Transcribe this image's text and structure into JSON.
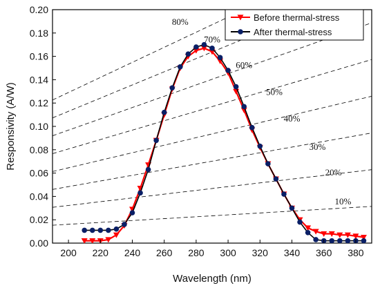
{
  "chart_data": {
    "type": "line",
    "xlabel": "Wavelength (nm)",
    "ylabel": "Responsivity (A/W)",
    "xlim": [
      190,
      390
    ],
    "ylim": [
      0,
      0.2
    ],
    "xticks": [
      "200",
      "220",
      "240",
      "260",
      "280",
      "300",
      "320",
      "340",
      "360",
      "380"
    ],
    "yticks": [
      "0.00",
      "0.02",
      "0.04",
      "0.06",
      "0.08",
      "0.10",
      "0.12",
      "0.14",
      "0.16",
      "0.18",
      "0.20"
    ],
    "legend_position": "top-right",
    "grid": false,
    "series": [
      {
        "name": "Before thermal-stress",
        "color": "#ff0000",
        "marker": "triangle-down",
        "x": [
          210,
          215,
          220,
          225,
          230,
          235,
          240,
          245,
          250,
          255,
          260,
          265,
          270,
          275,
          280,
          285,
          290,
          295,
          300,
          305,
          310,
          315,
          320,
          325,
          330,
          335,
          340,
          345,
          350,
          355,
          360,
          365,
          370,
          375,
          380,
          385
        ],
        "y": [
          0.002,
          0.002,
          0.002,
          0.003,
          0.007,
          0.015,
          0.029,
          0.047,
          0.067,
          0.088,
          0.11,
          0.132,
          0.15,
          0.16,
          0.165,
          0.167,
          0.164,
          0.156,
          0.146,
          0.13,
          0.114,
          0.097,
          0.082,
          0.068,
          0.055,
          0.042,
          0.03,
          0.02,
          0.013,
          0.01,
          0.008,
          0.008,
          0.007,
          0.007,
          0.006,
          0.005
        ]
      },
      {
        "name": "After thermal-stress",
        "color": "#0a1f66",
        "marker": "circle",
        "x": [
          210,
          215,
          220,
          225,
          230,
          235,
          240,
          245,
          250,
          255,
          260,
          265,
          270,
          275,
          280,
          285,
          290,
          295,
          300,
          305,
          310,
          315,
          320,
          325,
          330,
          335,
          340,
          345,
          350,
          355,
          360,
          365,
          370,
          375,
          380,
          385
        ],
        "y": [
          0.011,
          0.011,
          0.011,
          0.011,
          0.012,
          0.016,
          0.026,
          0.043,
          0.063,
          0.088,
          0.112,
          0.133,
          0.151,
          0.162,
          0.168,
          0.17,
          0.167,
          0.159,
          0.148,
          0.134,
          0.117,
          0.099,
          0.083,
          0.068,
          0.055,
          0.042,
          0.03,
          0.018,
          0.009,
          0.003,
          0.002,
          0.002,
          0.002,
          0.002,
          0.002,
          0.002
        ]
      }
    ],
    "efficiency_lines": [
      {
        "label": "10%",
        "pct": 10,
        "label_x": 372,
        "label_y": 0.033
      },
      {
        "label": "20%",
        "pct": 20,
        "label_x": 366,
        "label_y": 0.058
      },
      {
        "label": "30%",
        "pct": 30,
        "label_x": 356,
        "label_y": 0.08
      },
      {
        "label": "40%",
        "pct": 40,
        "label_x": 340,
        "label_y": 0.104
      },
      {
        "label": "50%",
        "pct": 50,
        "label_x": 329,
        "label_y": 0.127
      },
      {
        "label": "60%",
        "pct": 60,
        "label_x": 310,
        "label_y": 0.15
      },
      {
        "label": "70%",
        "pct": 70,
        "label_x": 290,
        "label_y": 0.172
      },
      {
        "label": "80%",
        "pct": 80,
        "label_x": 270,
        "label_y": 0.187
      }
    ]
  }
}
